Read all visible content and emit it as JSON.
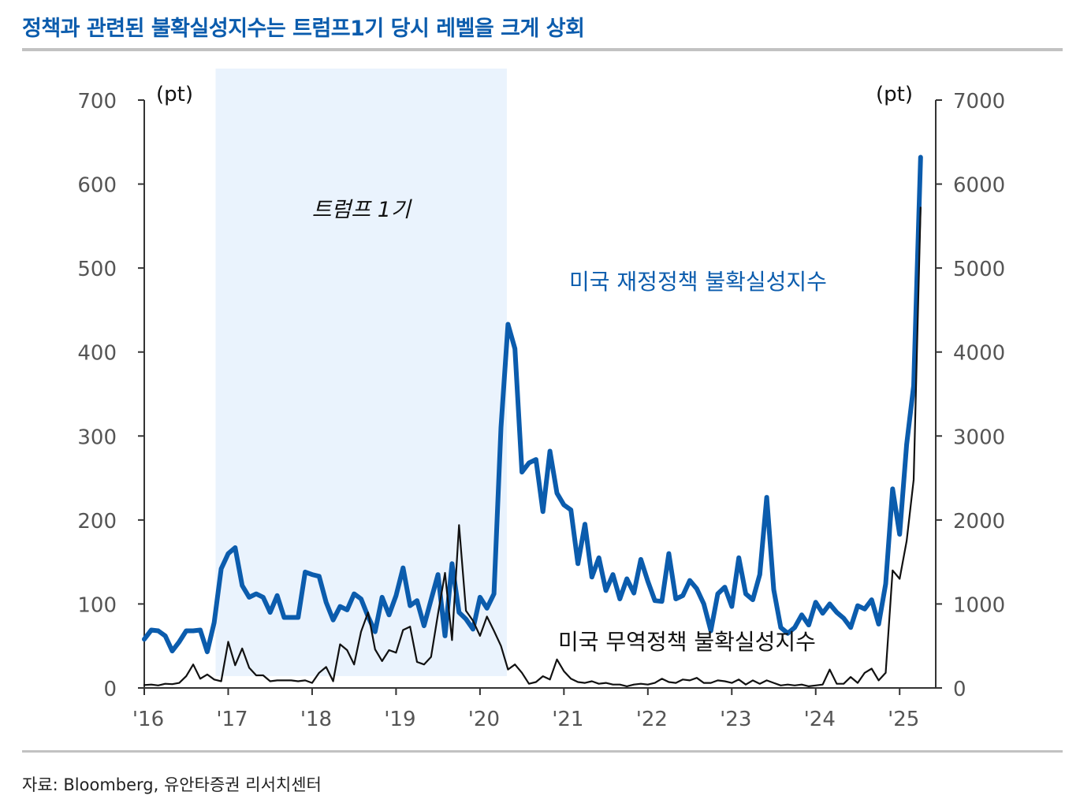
{
  "title": "정책과 관련된 불확실성지수는 트럼프1기 당시 레벨을 크게 상회",
  "source": "자료: Bloomberg, 유안타증권 리서치센터",
  "chart_data": {
    "type": "line",
    "title": "정책과 관련된 불확실성지수는 트럼프1기 당시 레벨을 크게 상회",
    "left_unit": "(pt)",
    "right_unit": "(pt)",
    "left_ylim": [
      0,
      700
    ],
    "right_ylim": [
      0,
      7000
    ],
    "left_ticks": [
      "0",
      "100",
      "200",
      "300",
      "400",
      "500",
      "600",
      "700"
    ],
    "right_ticks": [
      "0",
      "1000",
      "2000",
      "3000",
      "4000",
      "5000",
      "6000",
      "7000"
    ],
    "x_ticks": [
      "'16",
      "'17",
      "'18",
      "'19",
      "'20",
      "'21",
      "'22",
      "'23",
      "'24",
      "'25"
    ],
    "shaded_period": {
      "label": "트럼프 1기",
      "start": 2016.85,
      "end": 2020.32
    },
    "series": [
      {
        "name": "미국 재정정책 불확실성지수",
        "axis": "left",
        "color": "#0b5cad",
        "x_start": 2016.0,
        "x_step": 0.0833333,
        "values": [
          58,
          69,
          68,
          62,
          44,
          55,
          68,
          68,
          69,
          43,
          78,
          142,
          160,
          167,
          122,
          108,
          112,
          108,
          90,
          110,
          84,
          84,
          84,
          138,
          135,
          133,
          102,
          81,
          97,
          93,
          112,
          106,
          85,
          67,
          108,
          87,
          110,
          143,
          98,
          104,
          74,
          105,
          135,
          62,
          148,
          90,
          82,
          70,
          108,
          95,
          112,
          310,
          433,
          404,
          257,
          268,
          272,
          210,
          282,
          232,
          218,
          212,
          148,
          195,
          132,
          155,
          116,
          135,
          106,
          130,
          113,
          153,
          127,
          104,
          103,
          160,
          106,
          110,
          128,
          118,
          100,
          68,
          112,
          120,
          97,
          155,
          112,
          105,
          135,
          227,
          117,
          72,
          65,
          72,
          87,
          75,
          102,
          89,
          100,
          90,
          83,
          72,
          98,
          94,
          105,
          76,
          124,
          237,
          183,
          290,
          360,
          632
        ]
      },
      {
        "name": "미국 무역정책 불확실성지수",
        "axis": "right",
        "color": "#111111",
        "x_start": 2016.0,
        "x_step": 0.0833333,
        "values": [
          35,
          40,
          30,
          50,
          45,
          60,
          140,
          280,
          110,
          160,
          100,
          80,
          550,
          270,
          470,
          240,
          150,
          150,
          80,
          90,
          90,
          90,
          80,
          90,
          60,
          180,
          250,
          80,
          520,
          450,
          280,
          670,
          900,
          460,
          320,
          450,
          420,
          690,
          730,
          310,
          280,
          370,
          880,
          1370,
          570,
          1940,
          920,
          800,
          620,
          850,
          680,
          500,
          220,
          280,
          180,
          50,
          70,
          140,
          100,
          340,
          200,
          110,
          70,
          60,
          80,
          50,
          60,
          40,
          40,
          20,
          40,
          50,
          40,
          60,
          110,
          70,
          60,
          100,
          90,
          120,
          60,
          60,
          90,
          80,
          60,
          100,
          40,
          90,
          50,
          90,
          60,
          30,
          40,
          30,
          40,
          20,
          30,
          40,
          220,
          50,
          50,
          130,
          60,
          180,
          230,
          90,
          180,
          1400,
          1300,
          1750,
          2480,
          5720
        ]
      }
    ]
  }
}
